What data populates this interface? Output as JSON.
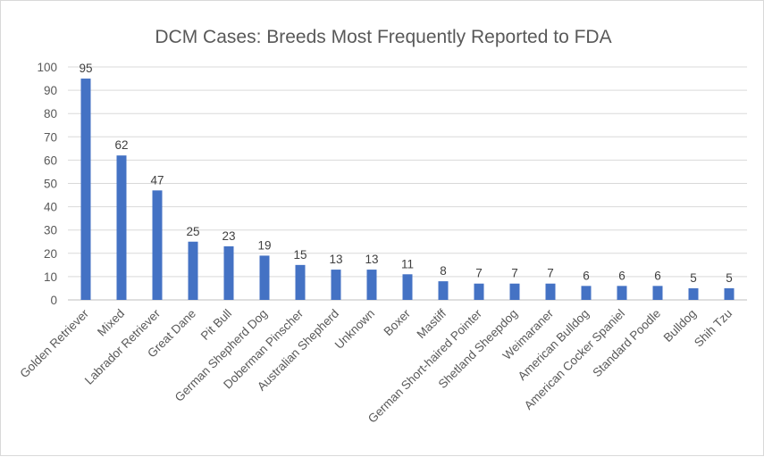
{
  "chart_data": {
    "type": "bar",
    "title": "DCM Cases: Breeds Most Frequently Reported to FDA",
    "xlabel": "",
    "ylabel": "",
    "ylim": [
      0,
      100
    ],
    "yticks": [
      0,
      10,
      20,
      30,
      40,
      50,
      60,
      70,
      80,
      90,
      100
    ],
    "grid": true,
    "bar_color": "#4472c4",
    "categories": [
      "Golden Retriever",
      "Mixed",
      "Labrador Retriever",
      "Great Dane",
      "Pit Bull",
      "German Shepherd Dog",
      "Doberman Pinscher",
      "Australian Shepherd",
      "Unknown",
      "Boxer",
      "Mastiff",
      "German Short-haired Pointer",
      "Shetland Sheepdog",
      "Weimaraner",
      "American Bulldog",
      "American Cocker Spaniel",
      "Standard Poodle",
      "Bulldog",
      "Shih Tzu"
    ],
    "values": [
      95,
      62,
      47,
      25,
      23,
      19,
      15,
      13,
      13,
      11,
      8,
      7,
      7,
      7,
      6,
      6,
      6,
      5,
      5
    ]
  }
}
